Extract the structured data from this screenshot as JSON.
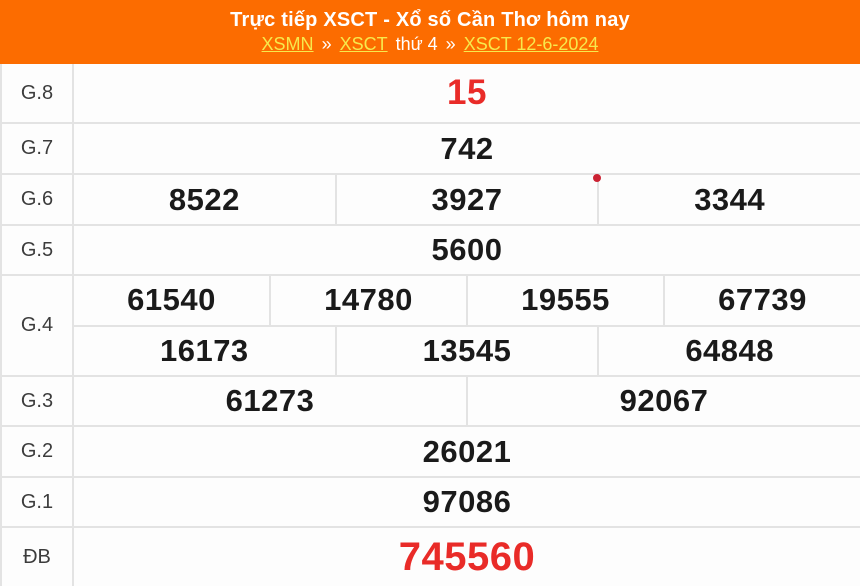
{
  "colors": {
    "header_bg": "#FC6C00",
    "title_text": "#FFFFFF",
    "link_text": "#F7E94C",
    "plain_text": "#FFFFFF",
    "number_text": "#1A1A1A",
    "highlight_text": "#E92B28",
    "label_text": "#3C3C3C",
    "border": "#E3E3E3",
    "row_bg": "#FDFDFD",
    "dot": "#CB2233"
  },
  "header": {
    "title": "Trực tiếp XSCT - Xổ số Cần Thơ hôm nay",
    "breadcrumb": [
      {
        "label": "XSMN",
        "link": true
      },
      {
        "label": "»",
        "link": false
      },
      {
        "label": "XSCT",
        "link": true
      },
      {
        "label": "thứ 4",
        "link": false
      },
      {
        "label": "»",
        "link": false
      },
      {
        "label": "XSCT 12-6-2024",
        "link": true
      }
    ]
  },
  "results": {
    "rows": [
      {
        "label": "G.8",
        "highlight": true,
        "subrows": [
          [
            "15"
          ]
        ]
      },
      {
        "label": "G.7",
        "highlight": false,
        "subrows": [
          [
            "742"
          ]
        ]
      },
      {
        "label": "G.6",
        "highlight": false,
        "subrows": [
          [
            "8522",
            "3927",
            "3344"
          ]
        ]
      },
      {
        "label": "G.5",
        "highlight": false,
        "subrows": [
          [
            "5600"
          ]
        ]
      },
      {
        "label": "G.4",
        "highlight": false,
        "subrows": [
          [
            "61540",
            "14780",
            "19555",
            "67739"
          ],
          [
            "16173",
            "13545",
            "64848"
          ]
        ]
      },
      {
        "label": "G.3",
        "highlight": false,
        "subrows": [
          [
            "61273",
            "92067"
          ]
        ]
      },
      {
        "label": "G.2",
        "highlight": false,
        "subrows": [
          [
            "26021"
          ]
        ]
      },
      {
        "label": "G.1",
        "highlight": false,
        "subrows": [
          [
            "97086"
          ]
        ]
      },
      {
        "label": "ĐB",
        "highlight": true,
        "subrows": [
          [
            "745560"
          ]
        ]
      }
    ]
  }
}
